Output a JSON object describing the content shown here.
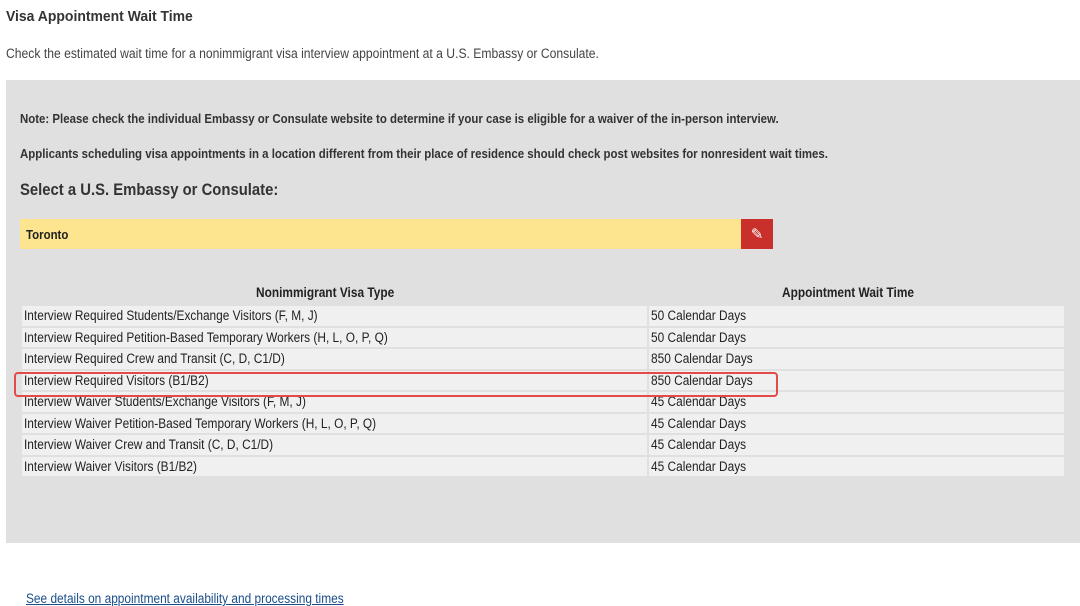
{
  "page": {
    "title": "Visa Appointment Wait Time",
    "description": "Check the estimated wait time for a nonimmigrant visa interview appointment at a U.S. Embassy or Consulate."
  },
  "notes": [
    "Note: Please check the individual Embassy or Consulate website to determine if your case is eligible for a waiver of the in-person interview.",
    "Applicants scheduling visa appointments in a location different from their place of residence should check post websites for nonresident wait times."
  ],
  "selector": {
    "label": "Select a U.S. Embassy or Consulate:",
    "value": "Toronto",
    "edit_icon": "edit-icon"
  },
  "table": {
    "headers": [
      "Nonimmigrant Visa Type",
      "Appointment Wait Time"
    ],
    "rows": [
      [
        "Interview Required Students/Exchange Visitors (F, M, J)",
        "50 Calendar Days"
      ],
      [
        "Interview Required Petition-Based Temporary Workers (H, L, O, P, Q)",
        "50 Calendar Days"
      ],
      [
        "Interview Required Crew and Transit (C, D, C1/D)",
        "850 Calendar Days"
      ],
      [
        "Interview Required Visitors (B1/B2)",
        "850 Calendar Days"
      ],
      [
        "Interview Waiver Students/Exchange Visitors (F, M, J)",
        "45 Calendar Days"
      ],
      [
        "Interview Waiver Petition-Based Temporary Workers (H, L, O, P, Q)",
        "45 Calendar Days"
      ],
      [
        "Interview Waiver Crew and Transit (C, D, C1/D)",
        "45 Calendar Days"
      ],
      [
        "Interview Waiver Visitors (B1/B2)",
        "45 Calendar Days"
      ]
    ]
  },
  "link": "See details on appointment availability and processing times",
  "colors": {
    "highlight": "#e34a4a",
    "selector_bg": "#fde58f",
    "edit_button": "#c9302c"
  }
}
